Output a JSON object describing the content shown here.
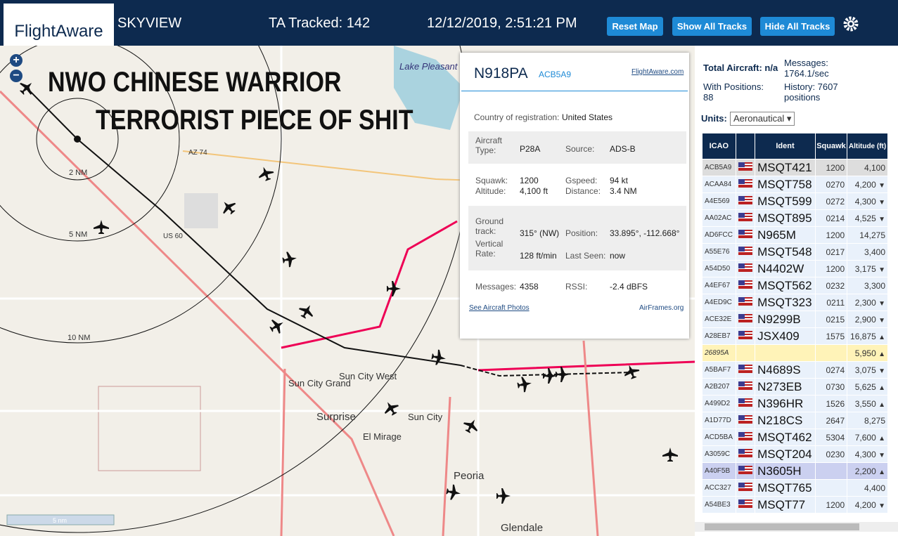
{
  "header": {
    "logo": "FlightAware",
    "app": "SKYVIEW",
    "tracked": "TA Tracked: 142",
    "clock": "12/12/2019, 2:51:21 PM",
    "buttons": [
      "Reset Map",
      "Show All Tracks",
      "Hide All Tracks"
    ]
  },
  "map": {
    "overlay": [
      "NWO CHINESE WARRIOR",
      "TERRORIST PIECE OF SHIT"
    ],
    "rings": [
      "2 NM",
      "5 NM",
      "10 NM"
    ],
    "places": [
      "Lake Pleasant Regional Park",
      "AZ 74",
      "US 60",
      "Sun City Grand",
      "Sun City West",
      "Surprise",
      "Sun City",
      "El Mirage",
      "Peoria",
      "Glendale"
    ],
    "scale": "5 nm"
  },
  "popup": {
    "reg": "N918PA",
    "icao": "ACB5A9",
    "link": "FlightAware.com",
    "rows": [
      [
        "Country of registration:",
        "United States"
      ],
      [
        "Aircraft Type:",
        "P28A"
      ],
      [
        "Source:",
        "ADS-B"
      ],
      [
        "Squawk:",
        "1200"
      ],
      [
        "Gspeed:",
        "94 kt"
      ],
      [
        "Altitude:",
        "4,100 ft"
      ],
      [
        "Distance:",
        "3.4 NM"
      ],
      [
        "Ground track:",
        "315° (NW)"
      ],
      [
        "Position:",
        "33.895°, -112.668°"
      ],
      [
        "Vertical Rate:",
        "128 ft/min"
      ],
      [
        "Last Seen:",
        "now"
      ],
      [
        "Messages:",
        "4358"
      ],
      [
        "RSSI:",
        "-2.4 dBFS"
      ]
    ],
    "photos": "See Aircraft Photos",
    "airframes": "AirFrames.org"
  },
  "sidebar": {
    "total": "Total Aircraft: n/a",
    "messages": "Messages: 1764.1/sec",
    "positions": "With Positions: 88",
    "history": "History: 7607 positions",
    "units_label": "Units:",
    "units": "Aeronautical ▾",
    "columns": [
      "ICAO",
      "Ident",
      "Squawk",
      "Altitude (ft)"
    ],
    "rows": [
      {
        "icao": "ACB5A9",
        "ident": "MSQT421",
        "squawk": "1200",
        "altitude": "4,100"
      },
      {
        "icao": "ACAA84",
        "ident": "MSQT758",
        "squawk": "0270",
        "altitude": "4,200",
        "trend": "▼"
      },
      {
        "icao": "A4E569",
        "ident": "MSQT599",
        "squawk": "0272",
        "altitude": "4,300",
        "trend": "▼"
      },
      {
        "icao": "AA02AC",
        "ident": "MSQT895",
        "squawk": "0214",
        "altitude": "4,525",
        "trend": "▼"
      },
      {
        "icao": "AD6FCC",
        "ident": "N965M",
        "squawk": "1200",
        "altitude": "14,275"
      },
      {
        "icao": "A55E76",
        "ident": "MSQT548",
        "squawk": "0217",
        "altitude": "3,400"
      },
      {
        "icao": "A54D50",
        "ident": "N4402W",
        "squawk": "1200",
        "altitude": "3,175",
        "trend": "▼"
      },
      {
        "icao": "A4EF67",
        "ident": "MSQT562",
        "squawk": "0232",
        "altitude": "3,300"
      },
      {
        "icao": "A4ED9C",
        "ident": "MSQT323",
        "squawk": "0211",
        "altitude": "2,300",
        "trend": "▼"
      },
      {
        "icao": "ACE32E",
        "ident": "N9299B",
        "squawk": "0215",
        "altitude": "2,900",
        "trend": "▼"
      },
      {
        "icao": "A28EB7",
        "ident": "JSX409",
        "squawk": "1575",
        "altitude": "16,875",
        "trend": "▲"
      },
      {
        "icao": "26895A",
        "altitude": "5,950",
        "trend": "▲"
      },
      {
        "icao": "A5BAF7",
        "ident": "N4689S",
        "squawk": "0274",
        "altitude": "3,075",
        "trend": "▼"
      },
      {
        "icao": "A2B207",
        "ident": "N273EB",
        "squawk": "0730",
        "altitude": "5,625",
        "trend": "▲"
      },
      {
        "icao": "A499D2",
        "ident": "N396HR",
        "squawk": "1526",
        "altitude": "3,550",
        "trend": "▲"
      },
      {
        "icao": "A1D77D",
        "ident": "N218CS",
        "squawk": "2647",
        "altitude": "8,275"
      },
      {
        "icao": "ACD5BA",
        "ident": "MSQT462",
        "squawk": "5304",
        "altitude": "7,600",
        "trend": "▲"
      },
      {
        "icao": "A3059C",
        "ident": "MSQT204",
        "squawk": "0230",
        "altitude": "4,300",
        "trend": "▼"
      },
      {
        "icao": "A40F5B",
        "ident": "N3605H",
        "altitude": "2,200",
        "trend": "▲"
      },
      {
        "icao": "ACC327",
        "ident": "MSQT765",
        "altitude": "4,400"
      },
      {
        "icao": "A54BE3",
        "ident": "MSQT77",
        "squawk": "1200",
        "altitude": "4,200",
        "trend": "▼"
      }
    ]
  }
}
